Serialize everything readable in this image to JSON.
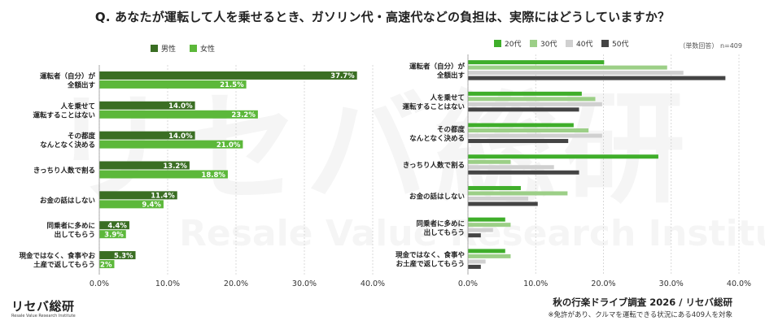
{
  "title": "Q. あなたが運転して人を乗せるとき、ガソリン代・高速代などの負担は、実際にはどうしていますか？",
  "sample_note": "（単数回答） n=409",
  "source": "秋の行楽ドライブ調査 2026 / リセバ総研",
  "footnote": "※免許があり、クルマを運転できる状況にある409人を対象",
  "logo": "リセバ総研",
  "logo_sub": "Resale Value Research Institute",
  "watermark": "リセバ総研",
  "watermark_sub": "Resale Value Research Institute",
  "colors": {
    "male": "#3a6e23",
    "female": "#5cb83a",
    "age20": "#3fae2a",
    "age30": "#9ccf87",
    "age40": "#d0d0d0",
    "age50": "#444444"
  },
  "chart_data": [
    {
      "type": "bar",
      "orientation": "horizontal",
      "categories": [
        [
          "運転者（自分）が",
          "全額出す"
        ],
        [
          "人を乗せて",
          "運転することはない"
        ],
        [
          "その都度",
          "なんとなく決める"
        ],
        [
          "きっちり人数で割る"
        ],
        [
          "お金の話はしない"
        ],
        [
          "同乗者に多めに",
          "出してもらう"
        ],
        [
          "現金ではなく、食事やお",
          "土産で返してもらう"
        ]
      ],
      "series": [
        {
          "name": "男性",
          "color": "#3a6e23",
          "values": [
            37.7,
            14.0,
            14.0,
            13.2,
            11.4,
            4.4,
            5.3
          ]
        },
        {
          "name": "女性",
          "color": "#5cb83a",
          "values": [
            21.5,
            23.2,
            21.0,
            18.8,
            9.4,
            3.9,
            2.2
          ]
        }
      ],
      "xlim": [
        0,
        40
      ],
      "xticks": [
        "0.0%",
        "10.0%",
        "20.0%",
        "30.0%",
        "40.0%"
      ],
      "grid": true,
      "legend": "top-left",
      "data_labels": true
    },
    {
      "type": "bar",
      "orientation": "horizontal",
      "categories": [
        [
          "運転者（自分）が",
          "全額出す"
        ],
        [
          "人を乗せて",
          "運転することはない"
        ],
        [
          "その都度",
          "なんとなく決める"
        ],
        [
          "きっちり人数で割る"
        ],
        [
          "お金の話はしない"
        ],
        [
          "同乗者に多めに",
          "出してもらう"
        ],
        [
          "現金ではなく、食事や",
          "お土産で返してもらう"
        ]
      ],
      "series": [
        {
          "name": "20代",
          "color": "#3fae2a",
          "values": [
            20.1,
            16.8,
            15.6,
            28.1,
            7.8,
            5.5,
            5.5
          ]
        },
        {
          "name": "30代",
          "color": "#9ccf87",
          "values": [
            29.4,
            18.8,
            17.8,
            6.3,
            14.7,
            6.3,
            6.3
          ]
        },
        {
          "name": "40代",
          "color": "#d0d0d0",
          "values": [
            31.8,
            19.8,
            19.8,
            12.7,
            8.9,
            3.7,
            2.6
          ]
        },
        {
          "name": "50代",
          "color": "#444444",
          "values": [
            38.0,
            16.4,
            14.8,
            16.4,
            10.3,
            1.9,
            1.9
          ]
        }
      ],
      "xlim": [
        0,
        40
      ],
      "xticks": [
        "0.0%",
        "10.0%",
        "20.0%",
        "30.0%",
        "40.0%"
      ],
      "grid": true,
      "legend": "top-left",
      "data_labels": false
    }
  ]
}
